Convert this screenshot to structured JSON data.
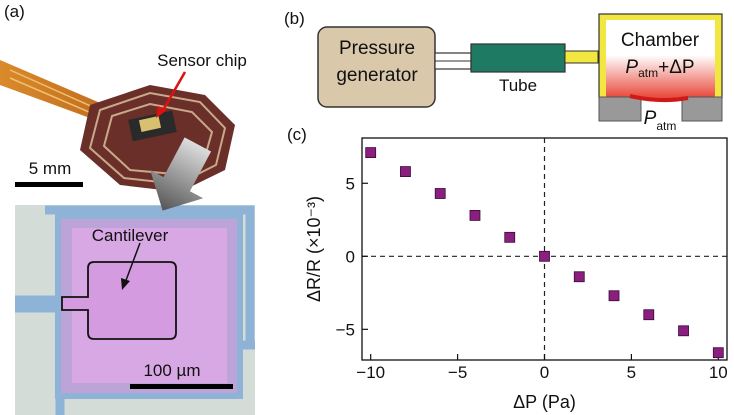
{
  "panels": {
    "a": {
      "label": "(a)",
      "top_photo_label": "Sensor chip",
      "top_scale": "5 mm",
      "bottom_photo_label": "Cantilever",
      "bottom_scale": "100 µm"
    },
    "b": {
      "label": "(b)",
      "generator": [
        "Pressure",
        "generator"
      ],
      "tube": "Tube",
      "chamber": "Chamber",
      "chamber_pressure": {
        "symbol": "P",
        "subscript": "atm",
        "rest": "+ΔP"
      },
      "outside_pressure": {
        "symbol": "P",
        "subscript": "atm"
      }
    },
    "c": {
      "label": "(c)"
    }
  },
  "chart_data": {
    "type": "scatter",
    "x_label": "ΔP (Pa)",
    "y_label": "ΔR/R (×10⁻³)",
    "x": [
      -10,
      -8,
      -6,
      -4,
      -2,
      0,
      2,
      4,
      6,
      8,
      10
    ],
    "values": [
      7.1,
      5.8,
      4.3,
      2.8,
      1.3,
      0,
      -1.4,
      -2.7,
      -4.0,
      -5.1,
      -6.6
    ],
    "color": "#8a1f80",
    "xlim": [
      -10.5,
      10.5
    ],
    "ylim": [
      -7.1,
      8.1
    ],
    "xticks": [
      {
        "value": -10,
        "label": "−10"
      },
      {
        "value": -5,
        "label": "−5"
      },
      0,
      5,
      10
    ],
    "yticks": [
      {
        "value": -5,
        "label": "−5"
      },
      0,
      5
    ]
  }
}
